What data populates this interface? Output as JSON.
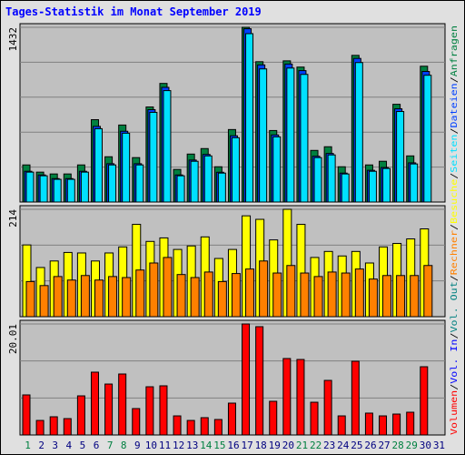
{
  "title": "Tages-Statistik im Monat September 2019",
  "categories": [
    "1",
    "2",
    "3",
    "4",
    "5",
    "6",
    "7",
    "8",
    "9",
    "10",
    "11",
    "12",
    "13",
    "14",
    "15",
    "16",
    "17",
    "18",
    "19",
    "20",
    "21",
    "22",
    "23",
    "24",
    "25",
    "26",
    "27",
    "28",
    "29",
    "30",
    "31"
  ],
  "category_colors": [
    "#008040",
    "#000080",
    "#000080",
    "#000080",
    "#000080",
    "#000080",
    "#008040",
    "#008040",
    "#000080",
    "#000080",
    "#000080",
    "#000080",
    "#000080",
    "#008040",
    "#008040",
    "#000080",
    "#000080",
    "#000080",
    "#000080",
    "#000080",
    "#008040",
    "#008040",
    "#000080",
    "#000080",
    "#000080",
    "#000080",
    "#000080",
    "#008040",
    "#008040",
    "#000080",
    "#000080"
  ],
  "separator": "/",
  "legend": [
    {
      "name": "Volumen",
      "color": "#ff0000"
    },
    {
      "name": "Vol. In",
      "color": "#0000ff"
    },
    {
      "name": "Vol. Out",
      "color": "#008080"
    },
    {
      "name": "Rechner",
      "color": "#ff8000"
    },
    {
      "name": "Besuche",
      "color": "#ffff00"
    },
    {
      "name": "Seiten",
      "color": "#00e0ff"
    },
    {
      "name": "Dateien",
      "color": "#0040ff"
    },
    {
      "name": "Anfragen",
      "color": "#008040"
    }
  ],
  "chart_data": [
    {
      "type": "bar",
      "ylim": [
        0,
        1432
      ],
      "yticks": [
        1432
      ],
      "grid_divisions": 5,
      "series": [
        {
          "name": "Anfragen",
          "color": "#008040",
          "values": [
            304,
            245,
            230,
            230,
            304,
            675,
            371,
            631,
            364,
            779,
            972,
            267,
            393,
            438,
            289,
            594,
            1432,
            1150,
            586,
            1157,
            1106,
            423,
            453,
            289,
            1202,
            304,
            334,
            801,
            378,
            1113,
            null
          ]
        },
        {
          "name": "Dateien",
          "color": "#0040ff",
          "values": [
            252,
            222,
            192,
            192,
            252,
            620,
            314,
            580,
            314,
            757,
            940,
            222,
            344,
            390,
            244,
            543,
            1420,
            1124,
            550,
            1131,
            1077,
            375,
            398,
            237,
            1177,
            260,
            283,
            764,
            321,
            1070,
            null
          ]
        },
        {
          "name": "Seiten",
          "color": "#00e0ff",
          "values": [
            245,
            215,
            186,
            186,
            245,
            601,
            304,
            564,
            304,
            735,
            913,
            215,
            334,
            378,
            237,
            527,
            1380,
            1091,
            534,
            1098,
            1046,
            364,
            386,
            230,
            1143,
            252,
            275,
            742,
            312,
            1039,
            null
          ]
        }
      ]
    },
    {
      "type": "bar",
      "ylim": [
        0,
        214
      ],
      "yticks": [
        214
      ],
      "grid_divisions": 3,
      "series": [
        {
          "name": "Besuche",
          "color": "#ffff00",
          "values": [
            143,
            98,
            111,
            128,
            127,
            111,
            127,
            139,
            184,
            150,
            157,
            134,
            141,
            159,
            116,
            134,
            201,
            194,
            153,
            214,
            184,
            118,
            130,
            121,
            130,
            107,
            139,
            146,
            155,
            175,
            null
          ]
        },
        {
          "name": "Rechner",
          "color": "#ff8000",
          "values": [
            70,
            62,
            80,
            73,
            82,
            73,
            80,
            78,
            93,
            107,
            118,
            84,
            78,
            89,
            70,
            86,
            95,
            111,
            87,
            102,
            87,
            80,
            89,
            87,
            95,
            75,
            82,
            82,
            82,
            102,
            null
          ]
        }
      ]
    },
    {
      "type": "bar",
      "ylim": [
        0,
        20.01
      ],
      "yticks": [
        20.01
      ],
      "grid_divisions": 3,
      "series": [
        {
          "name": "Volumen",
          "color": "#ff0000",
          "values": [
            7.22,
            2.62,
            3.28,
            2.95,
            7.05,
            11.32,
            9.18,
            10.99,
            4.76,
            8.69,
            8.86,
            3.44,
            2.62,
            3.12,
            2.79,
            5.74,
            20.01,
            19.52,
            6.07,
            13.78,
            13.61,
            5.9,
            9.84,
            3.44,
            13.29,
            3.94,
            3.44,
            3.77,
            4.1,
            12.3,
            null
          ]
        }
      ]
    }
  ]
}
